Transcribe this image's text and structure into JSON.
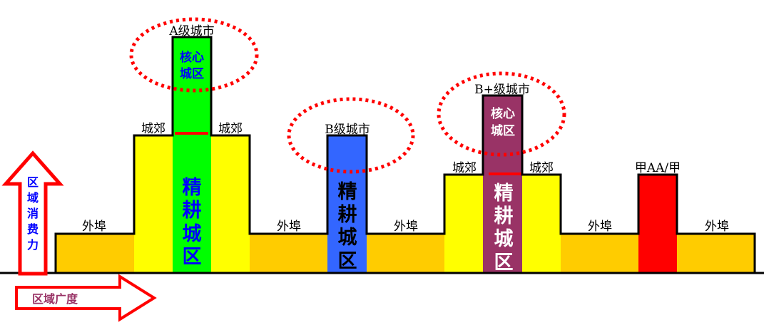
{
  "axes": {
    "vertical_label": [
      "区",
      "域",
      "消",
      "费",
      "力"
    ],
    "horizontal_label": "区域广度",
    "arrow_color": "#ff0000",
    "vertical_text_color": "#0000ff",
    "horizontal_text_color": "#993366"
  },
  "labels": {
    "outskirts": "外埠",
    "suburb": "城郊",
    "a_city": "A级城市",
    "b_city": "B级城市",
    "bplus_city": "B+级城市",
    "jia": "甲AA/甲",
    "core": [
      "核心",
      "城区"
    ],
    "intensive": [
      "精",
      "耕",
      "城",
      "区"
    ]
  },
  "colors": {
    "outskirts": "#ffcc00",
    "suburb": "#ffff00",
    "a_city": "#00ff00",
    "b_city": "#3366ff",
    "bplus_city": "#993366",
    "jia": "#ff0000",
    "ellipse": "#ff0000"
  }
}
